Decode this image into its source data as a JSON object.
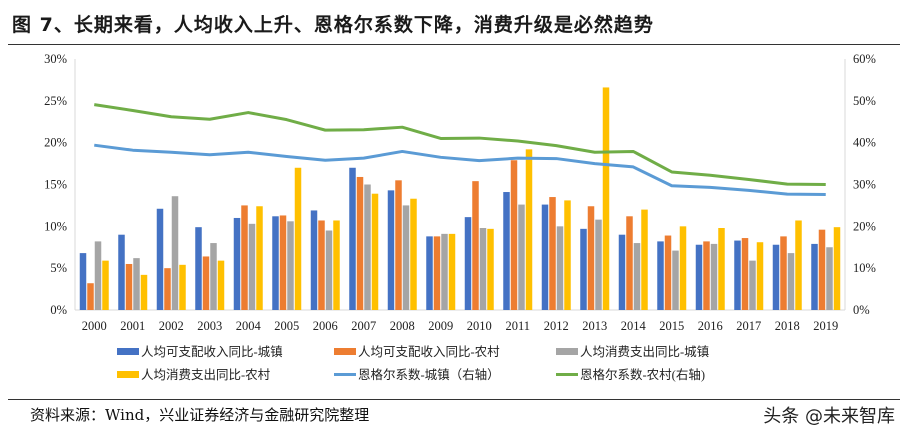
{
  "title": "图 7、长期来看，人均收入上升、恩格尔系数下降，消费升级是必然趋势",
  "source": "资料来源：Wind，兴业证券经济与金融研究院整理",
  "watermark": "头条 @未来智库",
  "chart_data": {
    "type": "bar+line",
    "categories": [
      "2000",
      "2001",
      "2002",
      "2003",
      "2004",
      "2005",
      "2006",
      "2007",
      "2008",
      "2009",
      "2010",
      "2011",
      "2012",
      "2013",
      "2014",
      "2015",
      "2016",
      "2017",
      "2018",
      "2019"
    ],
    "y_left": {
      "range": [
        0,
        30
      ],
      "ticks": [
        "0%",
        "5%",
        "10%",
        "15%",
        "20%",
        "25%",
        "30%"
      ],
      "tick_values": [
        0,
        5,
        10,
        15,
        20,
        25,
        30
      ]
    },
    "y_right": {
      "range": [
        0,
        60
      ],
      "ticks": [
        "0%",
        "10%",
        "20%",
        "30%",
        "40%",
        "50%",
        "60%"
      ],
      "tick_values": [
        0,
        10,
        20,
        30,
        40,
        50,
        60
      ]
    },
    "grid": false,
    "legend_placement": "bottom",
    "series": [
      {
        "name": "人均可支配收入同比-城镇",
        "type": "bar",
        "axis": "left",
        "color": "#4472C4",
        "values": [
          6.8,
          9.0,
          12.1,
          9.9,
          11.0,
          11.2,
          11.9,
          17.0,
          14.3,
          8.8,
          11.1,
          14.1,
          12.6,
          9.7,
          9.0,
          8.2,
          7.8,
          8.3,
          7.8,
          7.9
        ]
      },
      {
        "name": "人均可支配收入同比-农村",
        "type": "bar",
        "axis": "left",
        "color": "#ED7D31",
        "values": [
          3.2,
          5.5,
          5.0,
          6.4,
          12.5,
          11.3,
          10.7,
          15.9,
          15.5,
          8.8,
          15.4,
          17.9,
          13.5,
          12.4,
          11.2,
          8.9,
          8.2,
          8.6,
          8.8,
          9.6
        ]
      },
      {
        "name": "人均消费支出同比-城镇",
        "type": "bar",
        "axis": "left",
        "color": "#A5A5A5",
        "values": [
          8.2,
          6.2,
          13.6,
          8.0,
          10.3,
          10.6,
          9.5,
          15.0,
          12.5,
          9.1,
          9.8,
          12.6,
          10.0,
          10.8,
          8.0,
          7.1,
          7.9,
          5.9,
          6.8,
          7.5
        ]
      },
      {
        "name": "人均消费支出同比-农村",
        "type": "bar",
        "axis": "left",
        "color": "#FFC000",
        "values": [
          5.9,
          4.2,
          5.4,
          5.9,
          12.4,
          17.0,
          10.7,
          13.9,
          13.3,
          9.1,
          9.7,
          19.2,
          13.1,
          26.6,
          12.0,
          10.0,
          9.8,
          8.1,
          10.7,
          9.9
        ]
      },
      {
        "name": "恩格尔系数-城镇（右轴）",
        "type": "line",
        "axis": "right",
        "color": "#5B9BD5",
        "values": [
          39.4,
          38.2,
          37.7,
          37.1,
          37.7,
          36.7,
          35.8,
          36.3,
          37.9,
          36.5,
          35.7,
          36.3,
          36.2,
          35.0,
          34.2,
          29.7,
          29.3,
          28.6,
          27.7,
          27.6
        ]
      },
      {
        "name": "恩格尔系数-农村(右轴)",
        "type": "line",
        "axis": "right",
        "color": "#70AD47",
        "values": [
          49.1,
          47.7,
          46.2,
          45.6,
          47.2,
          45.5,
          43.0,
          43.1,
          43.7,
          41.0,
          41.1,
          40.4,
          39.3,
          37.7,
          37.9,
          33.0,
          32.2,
          31.2,
          30.1,
          30.0
        ]
      }
    ]
  }
}
